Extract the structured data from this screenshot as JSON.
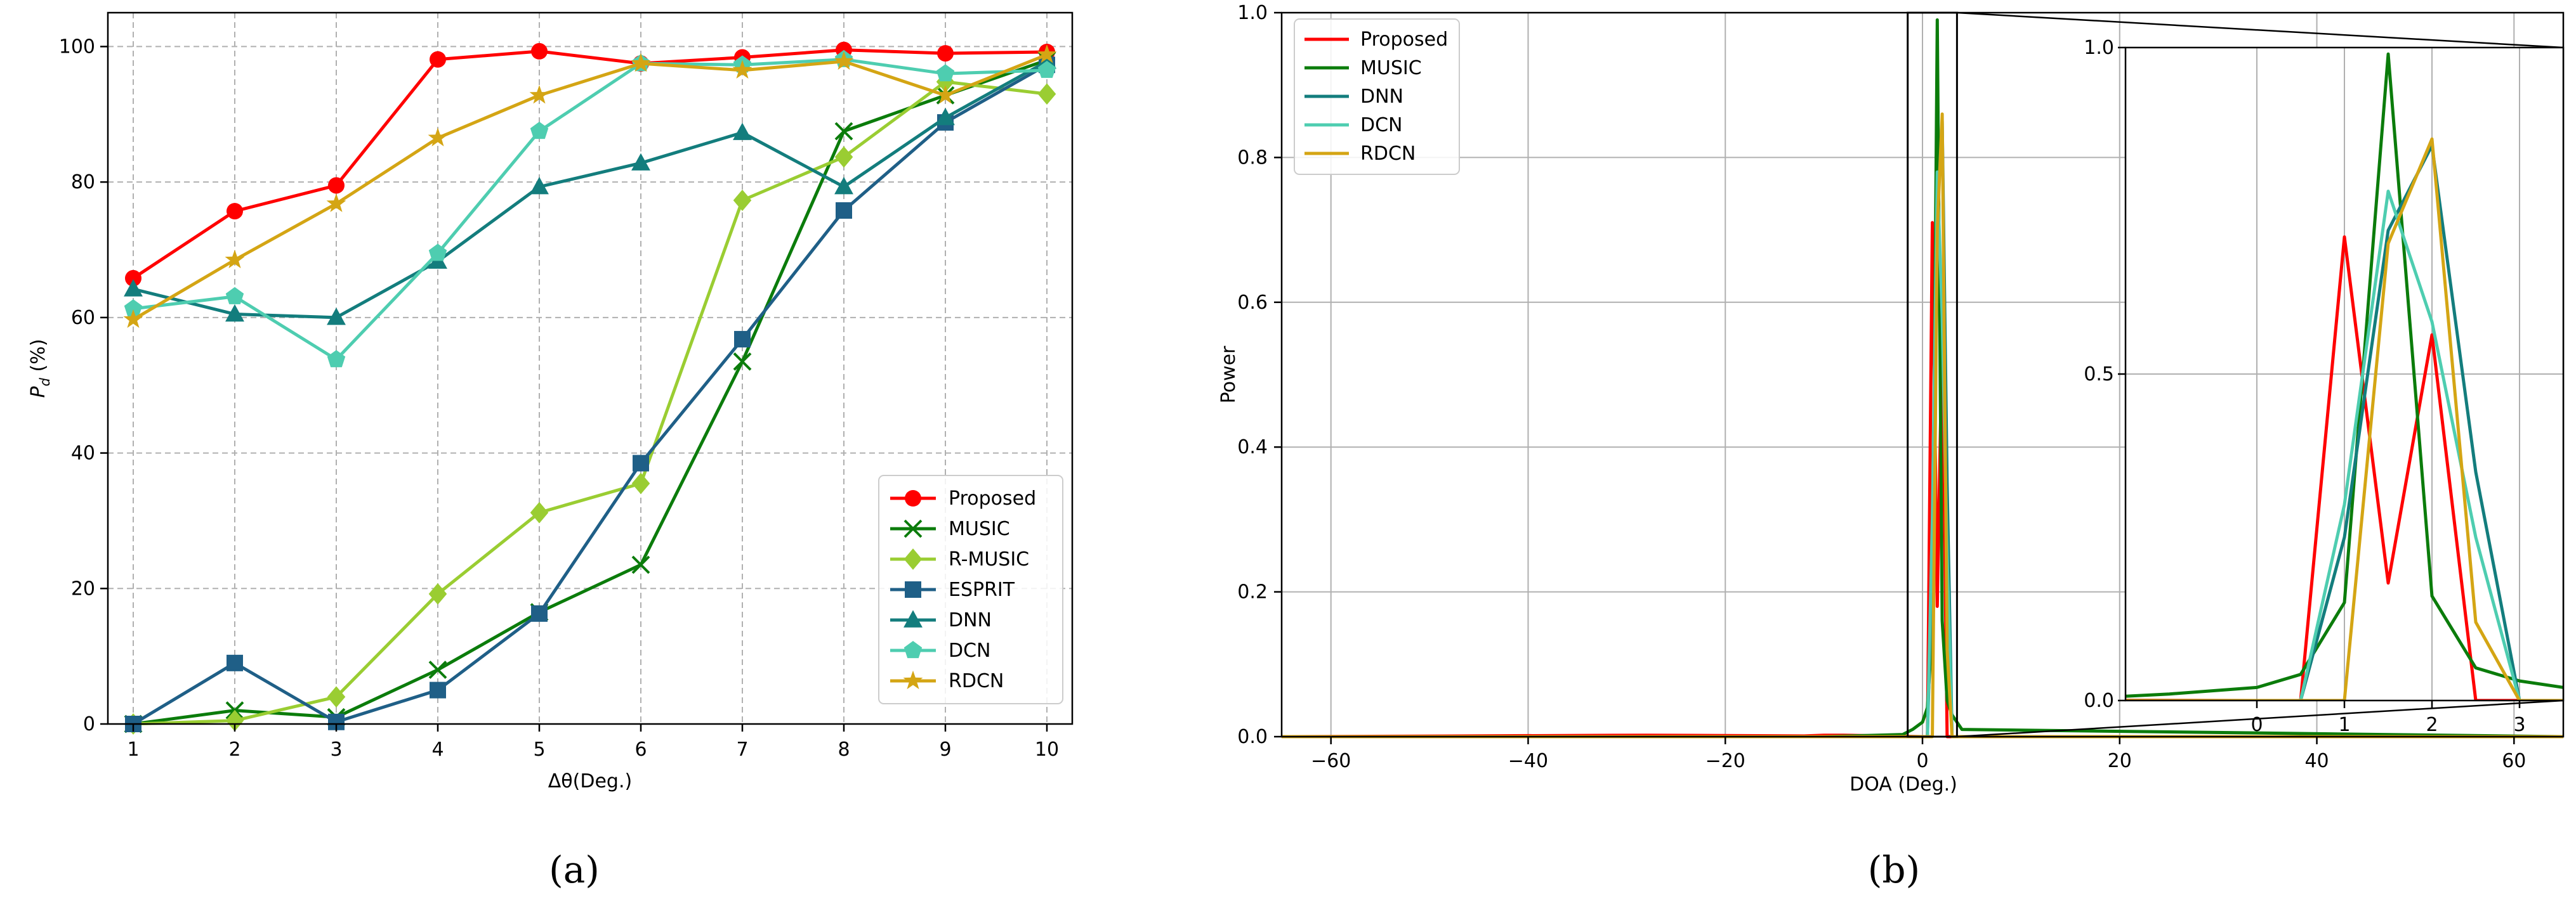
{
  "chart_data": [
    {
      "type": "line",
      "caption": "(a)",
      "xlabel": "Δθ(Deg.)",
      "ylabel": "Pd (%)",
      "xlim": [
        0.75,
        10.25
      ],
      "ylim": [
        0,
        105
      ],
      "xticks": [
        "1",
        "2",
        "3",
        "4",
        "5",
        "6",
        "7",
        "8",
        "9",
        "10"
      ],
      "yticks": [
        "0",
        "20",
        "40",
        "60",
        "80",
        "100"
      ],
      "grid": true,
      "grid_style": "dashed",
      "legend_position": "lower-right",
      "x": [
        1,
        2,
        3,
        4,
        5,
        6,
        7,
        8,
        9,
        10
      ],
      "series": [
        {
          "name": "Proposed",
          "color": "#ff0000",
          "marker": "circle",
          "values": [
            65.8,
            75.7,
            79.5,
            98.1,
            99.3,
            97.5,
            98.4,
            99.5,
            99.0,
            99.2
          ]
        },
        {
          "name": "MUSIC",
          "color": "#0b7c0b",
          "marker": "x",
          "values": [
            0,
            2.0,
            1.0,
            8.0,
            16.5,
            23.5,
            53.5,
            87.5,
            92.8,
            98.0
          ]
        },
        {
          "name": "R-MUSIC",
          "color": "#9acd32",
          "marker": "diamond",
          "values": [
            0,
            0.5,
            4.0,
            19.2,
            31.2,
            35.5,
            77.3,
            83.7,
            94.8,
            93.0
          ]
        },
        {
          "name": "ESPRIT",
          "color": "#1f5f87",
          "marker": "square",
          "values": [
            0,
            9.0,
            0.3,
            5.0,
            16.3,
            38.5,
            56.8,
            75.8,
            88.8,
            97.3
          ]
        },
        {
          "name": "DNN",
          "color": "#137d7d",
          "marker": "triangle",
          "values": [
            64.2,
            60.5,
            60.0,
            68.3,
            79.3,
            82.8,
            87.3,
            79.3,
            89.5,
            97.8
          ]
        },
        {
          "name": "DCN",
          "color": "#4ecdb0",
          "marker": "pentagon",
          "values": [
            61.3,
            63.1,
            53.8,
            69.5,
            87.5,
            97.5,
            97.3,
            98.1,
            96.0,
            96.5
          ]
        },
        {
          "name": "RDCN",
          "color": "#d4a514",
          "marker": "star",
          "values": [
            59.7,
            68.5,
            76.8,
            86.5,
            92.8,
            97.5,
            96.5,
            97.8,
            92.8,
            98.8
          ]
        }
      ]
    },
    {
      "type": "line",
      "caption": "(b)",
      "xlabel": "DOA (Deg.)",
      "ylabel": "Power",
      "xlim": [
        -65,
        65
      ],
      "ylim": [
        0,
        1.0
      ],
      "xticks": [
        "−60",
        "−40",
        "−20",
        "0",
        "20",
        "40",
        "60"
      ],
      "yticks": [
        "0.0",
        "0.2",
        "0.4",
        "0.6",
        "0.8",
        "1.0"
      ],
      "grid": true,
      "legend_position": "top-left",
      "series": [
        {
          "name": "Proposed",
          "color": "#ff0000",
          "x": [
            -65,
            -28,
            -12,
            -10,
            -8,
            0,
            0.5,
            1.0,
            1.5,
            2.0,
            2.5,
            5,
            65
          ],
          "values": [
            0,
            0.002,
            0.001,
            0.002,
            0.002,
            0.0,
            0.0,
            0.71,
            0.18,
            0.56,
            0.0,
            0,
            0
          ]
        },
        {
          "name": "MUSIC",
          "color": "#0b7c0b",
          "x": [
            -65,
            -10,
            -2,
            -1,
            0,
            0.5,
            1.0,
            1.5,
            2.0,
            2.5,
            3.0,
            4,
            65
          ],
          "values": [
            0,
            0.0,
            0.003,
            0.01,
            0.02,
            0.04,
            0.15,
            0.99,
            0.16,
            0.05,
            0.03,
            0.01,
            0
          ]
        },
        {
          "name": "DNN",
          "color": "#137d7d",
          "x": [
            -65,
            0.5,
            1.0,
            1.5,
            2.0,
            2.5,
            3.0,
            65
          ],
          "values": [
            0,
            0.0,
            0.25,
            0.72,
            0.85,
            0.35,
            0.0,
            0
          ]
        },
        {
          "name": "DCN",
          "color": "#4ecdb0",
          "x": [
            -65,
            0.5,
            1.0,
            1.5,
            2.0,
            2.5,
            3.0,
            65
          ],
          "values": [
            0,
            0.0,
            0.3,
            0.78,
            0.58,
            0.25,
            0.0,
            0
          ]
        },
        {
          "name": "RDCN",
          "color": "#d4a514",
          "x": [
            -65,
            1.0,
            1.5,
            2.0,
            2.5,
            3.0,
            65
          ],
          "values": [
            0,
            0.0,
            0.7,
            0.86,
            0.12,
            0.0,
            0
          ]
        }
      ],
      "inset": {
        "xlim": [
          -1.5,
          3.5
        ],
        "ylim": [
          0,
          1.0
        ],
        "xticks": [
          "0",
          "1",
          "2",
          "3"
        ],
        "yticks": [
          "0.0",
          "0.5",
          "1.0"
        ]
      }
    }
  ]
}
